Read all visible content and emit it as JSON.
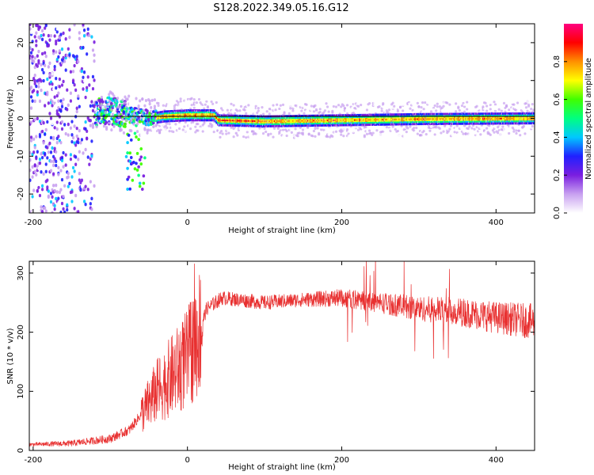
{
  "figure": {
    "title": "S128.2022.349.05.16.G12"
  },
  "chart_data": [
    {
      "type": "heatmap",
      "xlabel": "Height of straight line (km)",
      "ylabel": "Frequency (Hz)",
      "xlim": [
        -205,
        450
      ],
      "ylim": [
        -25,
        25
      ],
      "x_ticks": [
        -200,
        0,
        200,
        400
      ],
      "y_ticks": [
        -20,
        -10,
        0,
        10,
        20
      ],
      "colorbar": {
        "label": "Normalized spectral amplitude",
        "range": [
          0,
          1
        ],
        "ticks": [
          "0.0",
          "0.2",
          "0.4",
          "0.6",
          "0.8"
        ],
        "colors": [
          "#ffffff",
          "#c8a0f0",
          "#7a1ee0",
          "#2020ff",
          "#00c8ff",
          "#00ff80",
          "#40ff00",
          "#ffff00",
          "#ff9000",
          "#ff0000",
          "#ff0080"
        ]
      },
      "ridge": [
        {
          "x": -150,
          "f": 0.0
        },
        {
          "x": -120,
          "f": 1.5
        },
        {
          "x": -100,
          "f": 2.0
        },
        {
          "x": -80,
          "f": 1.0
        },
        {
          "x": -60,
          "f": 0.5
        },
        {
          "x": -45,
          "f": 0.0
        },
        {
          "x": -30,
          "f": 0.5
        },
        {
          "x": 0,
          "f": 0.8
        },
        {
          "x": 35,
          "f": 0.8
        },
        {
          "x": 40,
          "f": -0.5
        },
        {
          "x": 100,
          "f": -0.8
        },
        {
          "x": 200,
          "f": -0.5
        },
        {
          "x": 300,
          "f": -0.2
        },
        {
          "x": 450,
          "f": 0.0
        }
      ]
    },
    {
      "type": "line",
      "xlabel": "Height of straight line (km)",
      "ylabel": "SNR (10 * v/v)",
      "xlim": [
        -205,
        450
      ],
      "ylim": [
        0,
        320
      ],
      "x_ticks": [
        -200,
        0,
        200,
        400
      ],
      "y_ticks": [
        0,
        100,
        200,
        300
      ],
      "color": "#e83030",
      "envelope": [
        {
          "x": -205,
          "y": 10
        },
        {
          "x": -150,
          "y": 12
        },
        {
          "x": -100,
          "y": 20
        },
        {
          "x": -75,
          "y": 35
        },
        {
          "x": -55,
          "y": 70
        },
        {
          "x": -40,
          "y": 100
        },
        {
          "x": -25,
          "y": 120
        },
        {
          "x": -10,
          "y": 140
        },
        {
          "x": 0,
          "y": 155
        },
        {
          "x": 15,
          "y": 200
        },
        {
          "x": 25,
          "y": 240
        },
        {
          "x": 45,
          "y": 258
        },
        {
          "x": 100,
          "y": 250
        },
        {
          "x": 150,
          "y": 255
        },
        {
          "x": 200,
          "y": 258
        },
        {
          "x": 250,
          "y": 250
        },
        {
          "x": 300,
          "y": 240
        },
        {
          "x": 350,
          "y": 235
        },
        {
          "x": 400,
          "y": 225
        },
        {
          "x": 450,
          "y": 218
        }
      ]
    }
  ]
}
